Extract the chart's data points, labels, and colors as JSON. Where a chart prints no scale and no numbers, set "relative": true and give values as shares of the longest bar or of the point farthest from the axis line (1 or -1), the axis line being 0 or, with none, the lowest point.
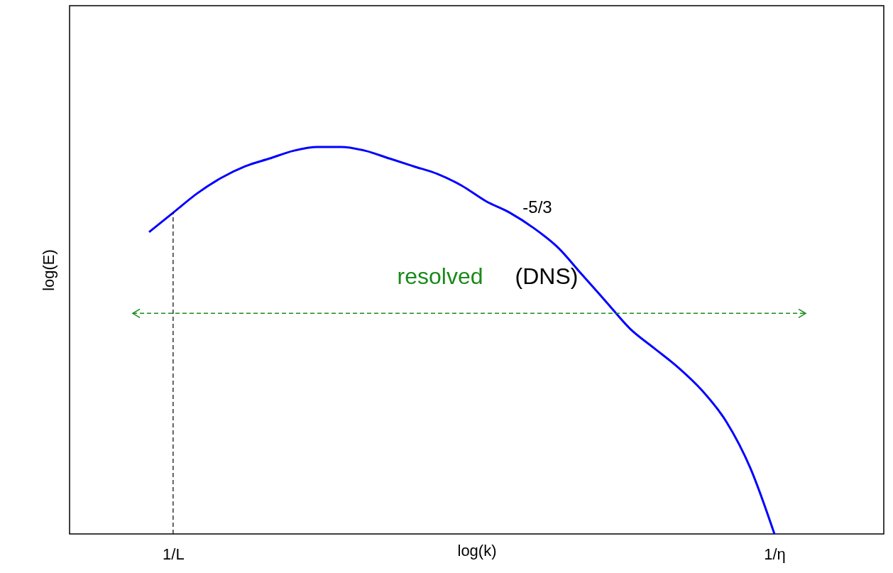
{
  "chart_data": {
    "type": "line",
    "relative": true,
    "xlabel": "log(k)",
    "ylabel": "log(E)",
    "categories": [
      null,
      "1/L",
      null,
      null,
      null,
      null,
      null,
      null,
      null,
      null,
      null,
      null,
      null,
      null,
      null,
      null,
      null,
      null,
      null,
      null,
      null,
      null,
      null,
      null,
      null,
      null,
      "1/η"
    ],
    "grid": false,
    "marker": "none",
    "line_style": "solid",
    "series": [
      {
        "color": "#0000ff",
        "values": [
          0.78,
          0.83,
          0.88,
          0.92,
          0.95,
          0.97,
          0.99,
          1,
          1,
          0.99,
          0.97,
          0.95,
          0.93,
          0.9,
          0.86,
          0.83,
          0.79,
          0.74,
          0.67,
          0.6,
          0.53,
          0.48,
          0.43,
          0.37,
          0.29,
          0.17,
          0
        ]
      }
    ],
    "ref_lines": [
      {
        "axis": "x",
        "value": "1/L",
        "line_style": "dashed",
        "color": "#000000"
      },
      {
        "axis": "y",
        "value": 0.57,
        "line_style": "dashed",
        "color": "#1a8a1a"
      }
    ],
    "annotations": [
      "-5/3",
      "resolved",
      "(DNS)"
    ]
  }
}
